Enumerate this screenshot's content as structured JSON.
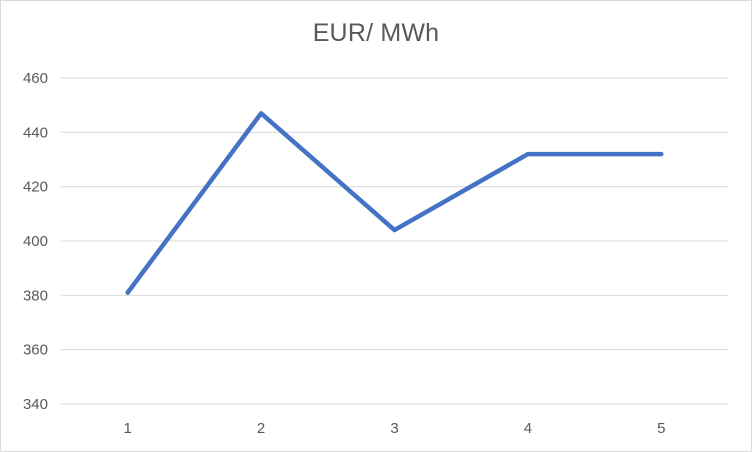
{
  "chart_data": {
    "type": "line",
    "title": "EUR/ MWh",
    "xlabel": "",
    "ylabel": "",
    "categories": [
      "1",
      "2",
      "3",
      "4",
      "5"
    ],
    "series": [
      {
        "values": [
          381,
          447,
          404,
          432,
          432
        ]
      }
    ],
    "ylim": [
      340,
      460
    ],
    "yticks": [
      340,
      360,
      380,
      400,
      420,
      440,
      460
    ],
    "grid": true,
    "legend": "none",
    "colors": {
      "series": "#4472c4",
      "grid": "#d9d9d9",
      "text": "#595959"
    }
  }
}
